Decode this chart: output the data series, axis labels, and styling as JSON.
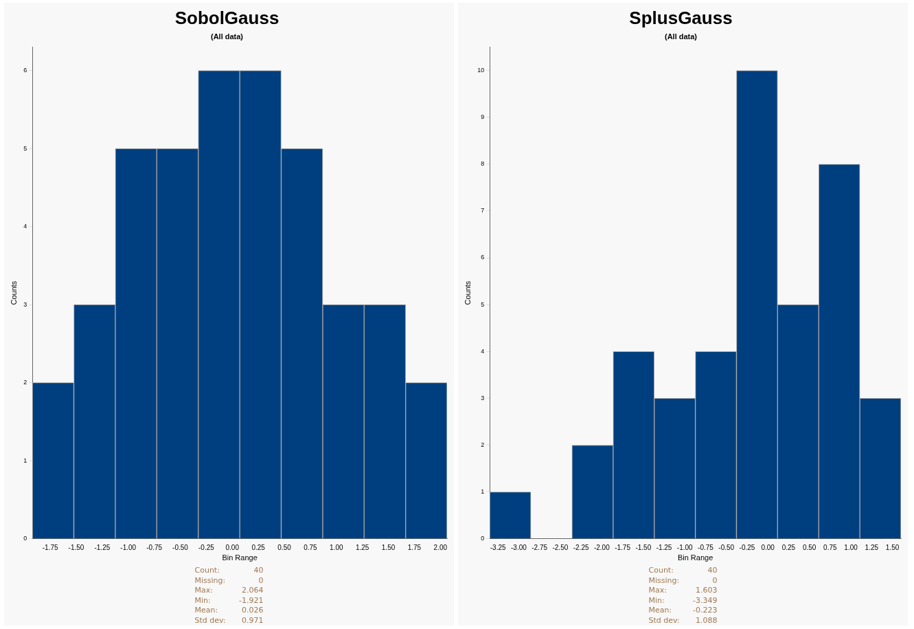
{
  "chart_data": [
    {
      "type": "histogram",
      "title": "SobolGauss",
      "subtitle": "(All data)",
      "xlabel": "Bin Range",
      "ylabel": "Counts",
      "color": "#003f7f",
      "bins": [
        -1.921,
        -1.523,
        -1.124,
        -0.726,
        -0.327,
        0.072,
        0.47,
        0.869,
        1.267,
        1.666,
        2.064
      ],
      "values": [
        2,
        3,
        5,
        5,
        6,
        6,
        5,
        3,
        3,
        2
      ],
      "xlim": [
        -1.921,
        2.064
      ],
      "xticks": [
        {
          "value": -1.75,
          "label": "-1.75"
        },
        {
          "value": -1.5,
          "label": "-1.50"
        },
        {
          "value": -1.25,
          "label": "-1.25"
        },
        {
          "value": -1,
          "label": "-1.00"
        },
        {
          "value": -0.75,
          "label": "-0.75"
        },
        {
          "value": -0.5,
          "label": "-0.50"
        },
        {
          "value": -0.25,
          "label": "-0.25"
        },
        {
          "value": 0,
          "label": "0.00"
        },
        {
          "value": 0.25,
          "label": "0.25"
        },
        {
          "value": 0.5,
          "label": "0.50"
        },
        {
          "value": 0.75,
          "label": "0.75"
        },
        {
          "value": 1,
          "label": "1.00"
        },
        {
          "value": 1.25,
          "label": "1.25"
        },
        {
          "value": 1.5,
          "label": "1.50"
        },
        {
          "value": 1.75,
          "label": "1.75"
        },
        {
          "value": 2,
          "label": "2.00"
        }
      ],
      "ylim": [
        0,
        6.3
      ],
      "yticks": [
        0,
        1,
        2,
        3,
        4,
        5,
        6
      ],
      "grid": false,
      "legend": false,
      "annotations": [
        "Count: 40",
        "Missing: 0",
        "Max: 2.064",
        "Min: -1.921",
        "Mean: 0.026",
        "Std dev: 0.971"
      ]
    },
    {
      "type": "histogram",
      "title": "SplusGauss",
      "subtitle": "(All data)",
      "xlabel": "Bin Range",
      "ylabel": "Counts",
      "color": "#003f7f",
      "bins": [
        -3.349,
        -2.854,
        -2.359,
        -1.863,
        -1.368,
        -0.873,
        -0.378,
        0.117,
        0.613,
        1.108,
        1.603
      ],
      "values": [
        1,
        0,
        2,
        4,
        3,
        4,
        10,
        5,
        8,
        3
      ],
      "xlim": [
        -3.349,
        1.603
      ],
      "xticks": [
        {
          "value": -3.25,
          "label": "-3.25"
        },
        {
          "value": -3,
          "label": "-3.00"
        },
        {
          "value": -2.75,
          "label": "-2.75"
        },
        {
          "value": -2.5,
          "label": "-2.50"
        },
        {
          "value": -2.25,
          "label": "-2.25"
        },
        {
          "value": -2,
          "label": "-2.00"
        },
        {
          "value": -1.75,
          "label": "-1.75"
        },
        {
          "value": -1.5,
          "label": "-1.50"
        },
        {
          "value": -1.25,
          "label": "-1.25"
        },
        {
          "value": -1,
          "label": "-1.00"
        },
        {
          "value": -0.75,
          "label": "-0.75"
        },
        {
          "value": -0.5,
          "label": "-0.50"
        },
        {
          "value": -0.25,
          "label": "-0.25"
        },
        {
          "value": 0,
          "label": "0.00"
        },
        {
          "value": 0.25,
          "label": "0.25"
        },
        {
          "value": 0.5,
          "label": "0.50"
        },
        {
          "value": 0.75,
          "label": "0.75"
        },
        {
          "value": 1,
          "label": "1.00"
        },
        {
          "value": 1.25,
          "label": "1.25"
        },
        {
          "value": 1.5,
          "label": "1.50"
        }
      ],
      "ylim": [
        0,
        10.5
      ],
      "yticks": [
        0,
        1,
        2,
        3,
        4,
        5,
        6,
        7,
        8,
        9,
        10
      ],
      "grid": false,
      "legend": false,
      "annotations": [
        "Count: 40",
        "Missing: 0",
        "Max: 1.603",
        "Min: -3.349",
        "Mean: -0.223",
        "Std dev: 1.088"
      ]
    }
  ]
}
